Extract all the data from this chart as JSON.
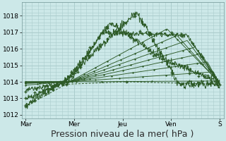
{
  "background_color": "#cce8e8",
  "grid_color": "#aacccc",
  "line_color": "#2d5a27",
  "xlabel": "Pression niveau de la mer( hPa )",
  "xlabel_fontsize": 9,
  "yticks": [
    1012,
    1013,
    1014,
    1015,
    1016,
    1017,
    1018
  ],
  "xtick_labels": [
    "Mar",
    "Mer",
    "Jeu",
    "Ven",
    "S"
  ],
  "xtick_positions": [
    0,
    24,
    48,
    72,
    96
  ],
  "ylim": [
    1011.8,
    1018.8
  ],
  "xlim": [
    -2,
    98
  ]
}
